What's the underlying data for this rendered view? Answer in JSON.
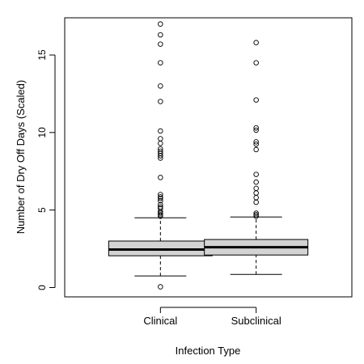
{
  "chart_data": {
    "type": "boxplot",
    "title": "",
    "xlabel": "Infection Type",
    "ylabel": "Number of Dry Off Days (Scaled)",
    "ylim": [
      -0.6,
      17.4
    ],
    "yticks": [
      0,
      5,
      10,
      15
    ],
    "categories": [
      "Clinical",
      "Subclinical"
    ],
    "box_fill": "#d3d3d3",
    "boxes": [
      {
        "name": "Clinical",
        "whisker_low": 0.75,
        "q1": 2.05,
        "median": 2.45,
        "q3": 3.0,
        "whisker_high": 4.5,
        "outliers": [
          0.05,
          4.6,
          4.7,
          4.8,
          4.9,
          5.1,
          5.2,
          5.35,
          5.6,
          5.75,
          5.85,
          6.0,
          7.1,
          8.35,
          8.5,
          8.65,
          8.8,
          8.95,
          9.3,
          9.6,
          10.1,
          12.0,
          13.0,
          14.5,
          15.7,
          16.3,
          17.0
        ]
      },
      {
        "name": "Subclinical",
        "whisker_low": 0.85,
        "q1": 2.1,
        "median": 2.6,
        "q3": 3.1,
        "whisker_high": 4.55,
        "outliers": [
          4.6,
          4.7,
          4.8,
          5.5,
          5.8,
          6.1,
          6.4,
          6.8,
          7.3,
          8.9,
          9.25,
          9.4,
          10.15,
          10.3,
          12.1,
          14.5,
          15.8
        ]
      }
    ]
  }
}
